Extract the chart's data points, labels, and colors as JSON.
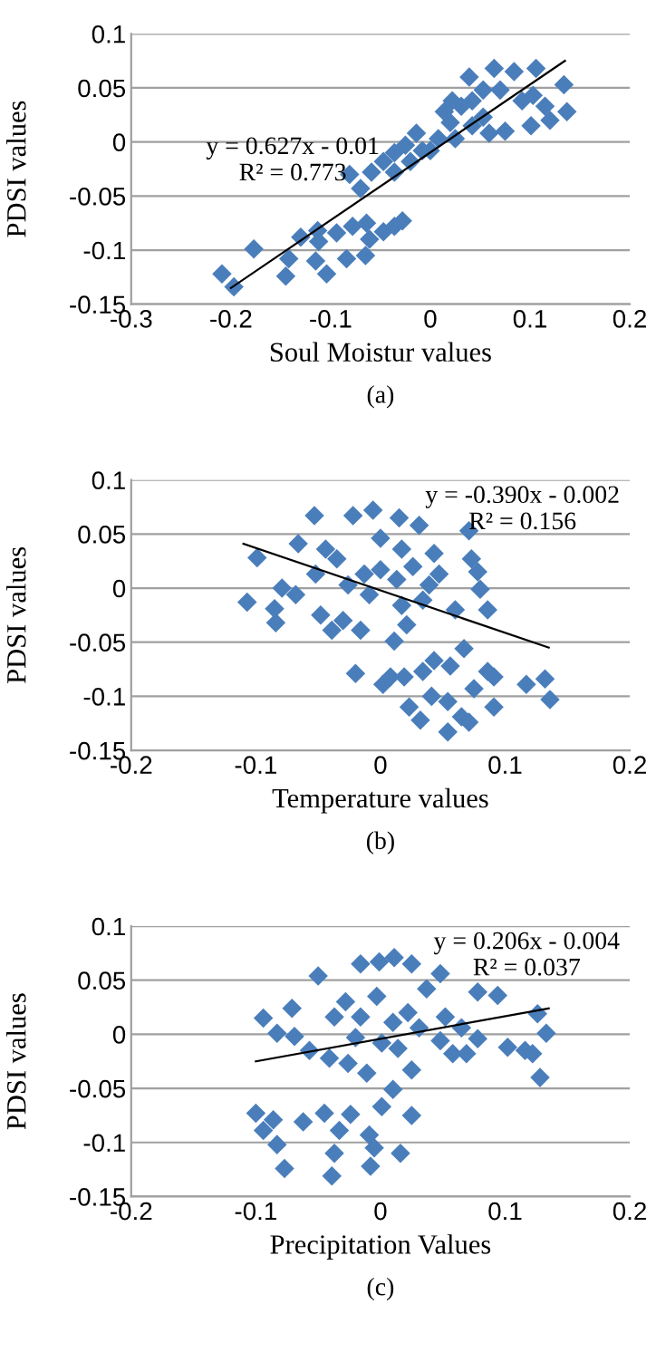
{
  "chart_data": [
    {
      "type": "scatter",
      "xlabel": "Soul Moistur values",
      "ylabel": "PDSI values",
      "annotations": [
        "y = 0.627x - 0.01\nR² = 0.773",
        "(a)"
      ],
      "xlim": [
        -0.3,
        0.2
      ],
      "ylim": [
        -0.15,
        0.1
      ],
      "xticks": [
        -0.3,
        -0.2,
        -0.1,
        0,
        0.1,
        0.2
      ],
      "yticks": [
        -0.15,
        -0.1,
        -0.05,
        0,
        0.05,
        0.1
      ],
      "grid": "y",
      "marker": "diamond",
      "legend": false,
      "series": [
        {
          "color": "#4a7ebb",
          "x": [
            -0.209,
            -0.197,
            -0.177,
            -0.145,
            -0.142,
            -0.13,
            -0.113,
            -0.112,
            -0.115,
            -0.104,
            -0.094,
            -0.084,
            -0.081,
            -0.078,
            -0.065,
            -0.064,
            -0.061,
            -0.047,
            -0.036,
            -0.028,
            -0.07,
            -0.059,
            -0.047,
            -0.036,
            -0.036,
            -0.025,
            -0.02,
            -0.014,
            -0.008,
            0,
            0.008,
            0.014,
            0.02,
            0.025,
            0.031,
            0.039,
            0.042,
            0.053,
            0.064,
            0.07,
            0.075,
            0.084,
            0.092,
            0.101,
            0.106,
            0.115,
            0.12,
            0.134,
            0.137,
            0.053,
            0.042,
            0.022,
            0.059,
            0.103
          ],
          "values": [
            -0.122,
            -0.134,
            -0.099,
            -0.124,
            -0.108,
            -0.088,
            -0.082,
            -0.092,
            -0.11,
            -0.122,
            -0.084,
            -0.108,
            -0.03,
            -0.078,
            -0.105,
            -0.075,
            -0.09,
            -0.083,
            -0.078,
            -0.073,
            -0.043,
            -0.028,
            -0.018,
            -0.028,
            -0.01,
            -0.003,
            -0.018,
            0.008,
            -0.008,
            -0.008,
            0.003,
            0.028,
            0.018,
            0.003,
            0.033,
            0.06,
            0.038,
            0.023,
            0.068,
            0.048,
            0.01,
            0.065,
            0.038,
            0.015,
            0.068,
            0.033,
            0.02,
            0.053,
            0.028,
            0.048,
            0.015,
            0.038,
            0.008,
            0.043
          ]
        },
        {
          "type": "line",
          "color": "#000000",
          "marker": "none",
          "x": [
            -0.2,
            0.135
          ],
          "values": [
            -0.135,
            0.075
          ]
        }
      ]
    },
    {
      "type": "scatter",
      "xlabel": "Temperature values",
      "ylabel": "PDSI values",
      "annotations": [
        "y = -0.390x - 0.002\nR² = 0.156",
        "(b)"
      ],
      "xlim": [
        -0.2,
        0.2
      ],
      "ylim": [
        -0.15,
        0.1
      ],
      "xticks": [
        -0.2,
        -0.1,
        0,
        0.1,
        0.2
      ],
      "yticks": [
        -0.15,
        -0.1,
        -0.05,
        0,
        0.05,
        0.1
      ],
      "grid": "y",
      "marker": "diamond",
      "legend": false,
      "series": [
        {
          "color": "#4a7ebb",
          "x": [
            -0.107,
            -0.099,
            -0.085,
            -0.084,
            -0.079,
            -0.068,
            -0.066,
            -0.053,
            -0.052,
            -0.048,
            -0.039,
            -0.035,
            -0.03,
            -0.022,
            -0.02,
            -0.016,
            -0.006,
            0,
            0.002,
            0.008,
            0.011,
            0.015,
            0.019,
            0.021,
            0.023,
            0.031,
            0.032,
            0.034,
            0.041,
            0.043,
            0.054,
            0.054,
            0.056,
            0.06,
            0.065,
            0.067,
            0.071,
            0.071,
            0.073,
            0.075,
            0.078,
            0.08,
            0.086,
            0.086,
            0.091,
            0.091,
            0.117,
            0.132,
            0.136,
            -0.026,
            -0.013,
            0,
            0.013,
            0.026,
            0.039,
            0.047,
            0.017,
            -0.009,
            0.017,
            0.043,
            -0.044,
            0.034
          ],
          "values": [
            -0.013,
            0.028,
            -0.019,
            -0.032,
            0,
            -0.006,
            0.041,
            0.067,
            0.013,
            -0.025,
            -0.039,
            0.027,
            -0.03,
            0.067,
            -0.079,
            -0.039,
            0.072,
            0.046,
            -0.089,
            -0.082,
            -0.049,
            0.065,
            -0.082,
            -0.034,
            -0.11,
            0.058,
            -0.122,
            -0.077,
            -0.1,
            -0.067,
            -0.133,
            -0.105,
            -0.072,
            -0.02,
            -0.119,
            -0.056,
            -0.124,
            0.053,
            0.027,
            -0.093,
            0.015,
            -0.001,
            -0.02,
            -0.077,
            -0.11,
            -0.082,
            -0.089,
            -0.084,
            -0.103,
            0.003,
            0.013,
            0.017,
            0.008,
            0.02,
            0.003,
            0.013,
            0.036,
            -0.006,
            -0.016,
            0.032,
            0.036,
            -0.011
          ]
        },
        {
          "type": "line",
          "color": "#000000",
          "marker": "none",
          "x": [
            -0.11,
            0.135
          ],
          "values": [
            0.041,
            -0.055
          ]
        }
      ]
    },
    {
      "type": "scatter",
      "xlabel": "Precipitation Values",
      "ylabel": "PDSI values",
      "annotations": [
        "y = 0.206x - 0.004\nR² = 0.037",
        "(c)"
      ],
      "xlim": [
        -0.2,
        0.2
      ],
      "ylim": [
        -0.15,
        0.1
      ],
      "xticks": [
        -0.2,
        -0.1,
        0,
        0.1,
        0.2
      ],
      "yticks": [
        -0.15,
        -0.1,
        -0.05,
        0,
        0.05,
        0.1
      ],
      "grid": "y",
      "marker": "diamond",
      "legend": false,
      "series": [
        {
          "color": "#4a7ebb",
          "x": [
            -0.1,
            -0.094,
            -0.094,
            -0.086,
            -0.083,
            -0.083,
            -0.077,
            -0.071,
            -0.069,
            -0.062,
            -0.057,
            -0.05,
            -0.045,
            -0.041,
            -0.039,
            -0.037,
            -0.033,
            -0.026,
            -0.024,
            -0.016,
            -0.011,
            -0.009,
            -0.008,
            -0.005,
            -0.001,
            0.001,
            0.01,
            0.011,
            0.016,
            0.025,
            0.025,
            0.025,
            0.037,
            0.048,
            0.048,
            0.058,
            0.065,
            0.069,
            0.078,
            0.078,
            0.094,
            0.102,
            0.116,
            0.122,
            0.126,
            0.128,
            0.133,
            -0.028,
            -0.016,
            -0.003,
            0.01,
            0.022,
            -0.02,
            0.001,
            0.014,
            -0.037,
            0.031,
            0.052
          ],
          "values": [
            -0.073,
            0.015,
            -0.089,
            -0.079,
            0.001,
            -0.102,
            -0.124,
            0.024,
            -0.002,
            -0.081,
            -0.015,
            0.054,
            -0.073,
            -0.022,
            -0.131,
            -0.11,
            -0.089,
            -0.027,
            -0.074,
            0.065,
            -0.036,
            -0.093,
            -0.122,
            -0.105,
            0.067,
            -0.067,
            -0.051,
            0.071,
            -0.11,
            -0.075,
            0.065,
            -0.033,
            0.042,
            0.056,
            -0.006,
            -0.018,
            0.006,
            -0.018,
            0.039,
            -0.004,
            0.036,
            -0.012,
            -0.015,
            -0.018,
            0.019,
            -0.04,
            0.001,
            0.03,
            0.016,
            0.035,
            0.011,
            0.02,
            -0.003,
            -0.008,
            -0.013,
            0.016,
            0.006,
            0.016
          ]
        },
        {
          "type": "line",
          "color": "#000000",
          "marker": "none",
          "x": [
            -0.1,
            0.135
          ],
          "values": [
            -0.025,
            0.024
          ]
        }
      ]
    }
  ]
}
